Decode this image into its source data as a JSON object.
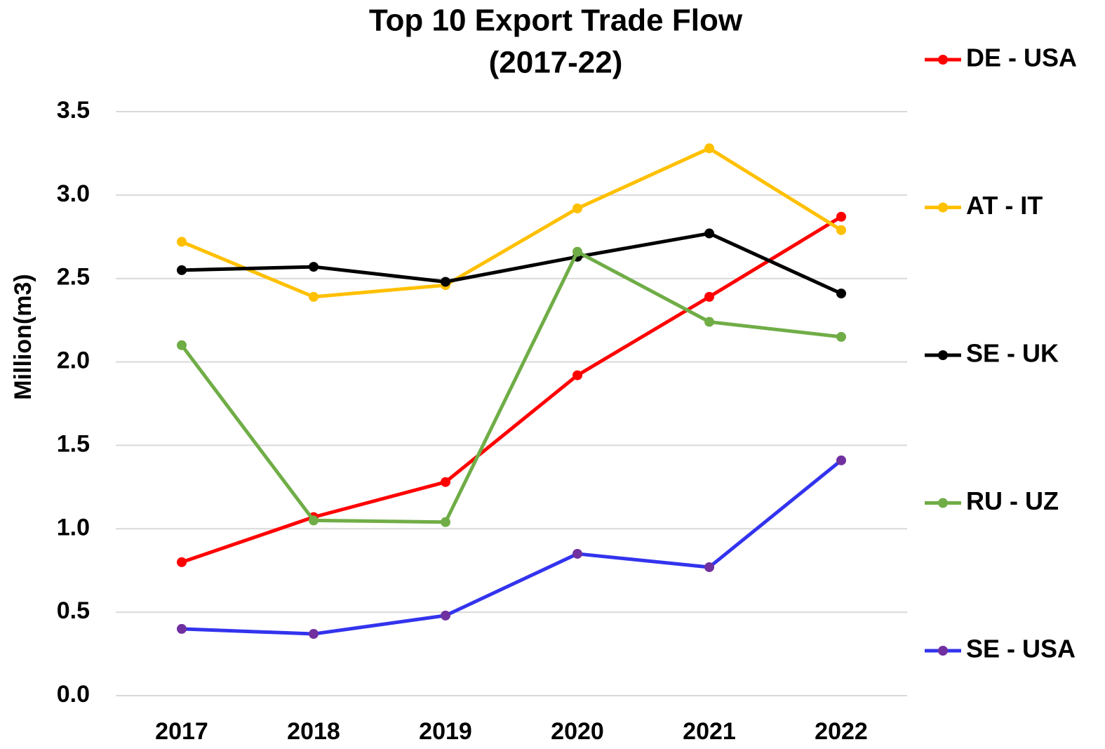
{
  "chart_data": {
    "type": "line",
    "title": [
      "Top 10 Export Trade Flow",
      "(2017-22)"
    ],
    "y_label": "Million(m3)",
    "categories": [
      "2017",
      "2018",
      "2019",
      "2020",
      "2021",
      "2022"
    ],
    "series": [
      {
        "name": "DE - USA",
        "color": "#ff0000",
        "marker_color": "#ff0000",
        "values": [
          0.8,
          1.07,
          1.28,
          1.92,
          2.39,
          2.87
        ]
      },
      {
        "name": "AT - IT",
        "color": "#ffc000",
        "marker_color": "#ffc000",
        "values": [
          2.72,
          2.39,
          2.46,
          2.92,
          3.28,
          2.79
        ]
      },
      {
        "name": "SE - UK",
        "color": "#000000",
        "marker_color": "#000000",
        "values": [
          2.55,
          2.57,
          2.48,
          2.63,
          2.77,
          2.41
        ]
      },
      {
        "name": "RU - UZ",
        "color": "#70ad47",
        "marker_color": "#70ad47",
        "values": [
          2.1,
          1.05,
          1.04,
          2.66,
          2.24,
          2.15
        ]
      },
      {
        "name": "SE - USA",
        "color": "#3333ee",
        "marker_color": "#7030a0",
        "values": [
          0.4,
          0.37,
          0.48,
          0.85,
          0.77,
          1.41
        ]
      }
    ],
    "ylim": [
      0,
      3.5
    ],
    "yticks": [
      {
        "value": 0,
        "label": "0.0"
      },
      0.5,
      {
        "value": 1,
        "label": "1.0"
      },
      1.5,
      {
        "value": 2,
        "label": "2.0"
      },
      2.5,
      {
        "value": 3,
        "label": "3.0"
      },
      3.5
    ],
    "grid": true,
    "legend": "right"
  }
}
